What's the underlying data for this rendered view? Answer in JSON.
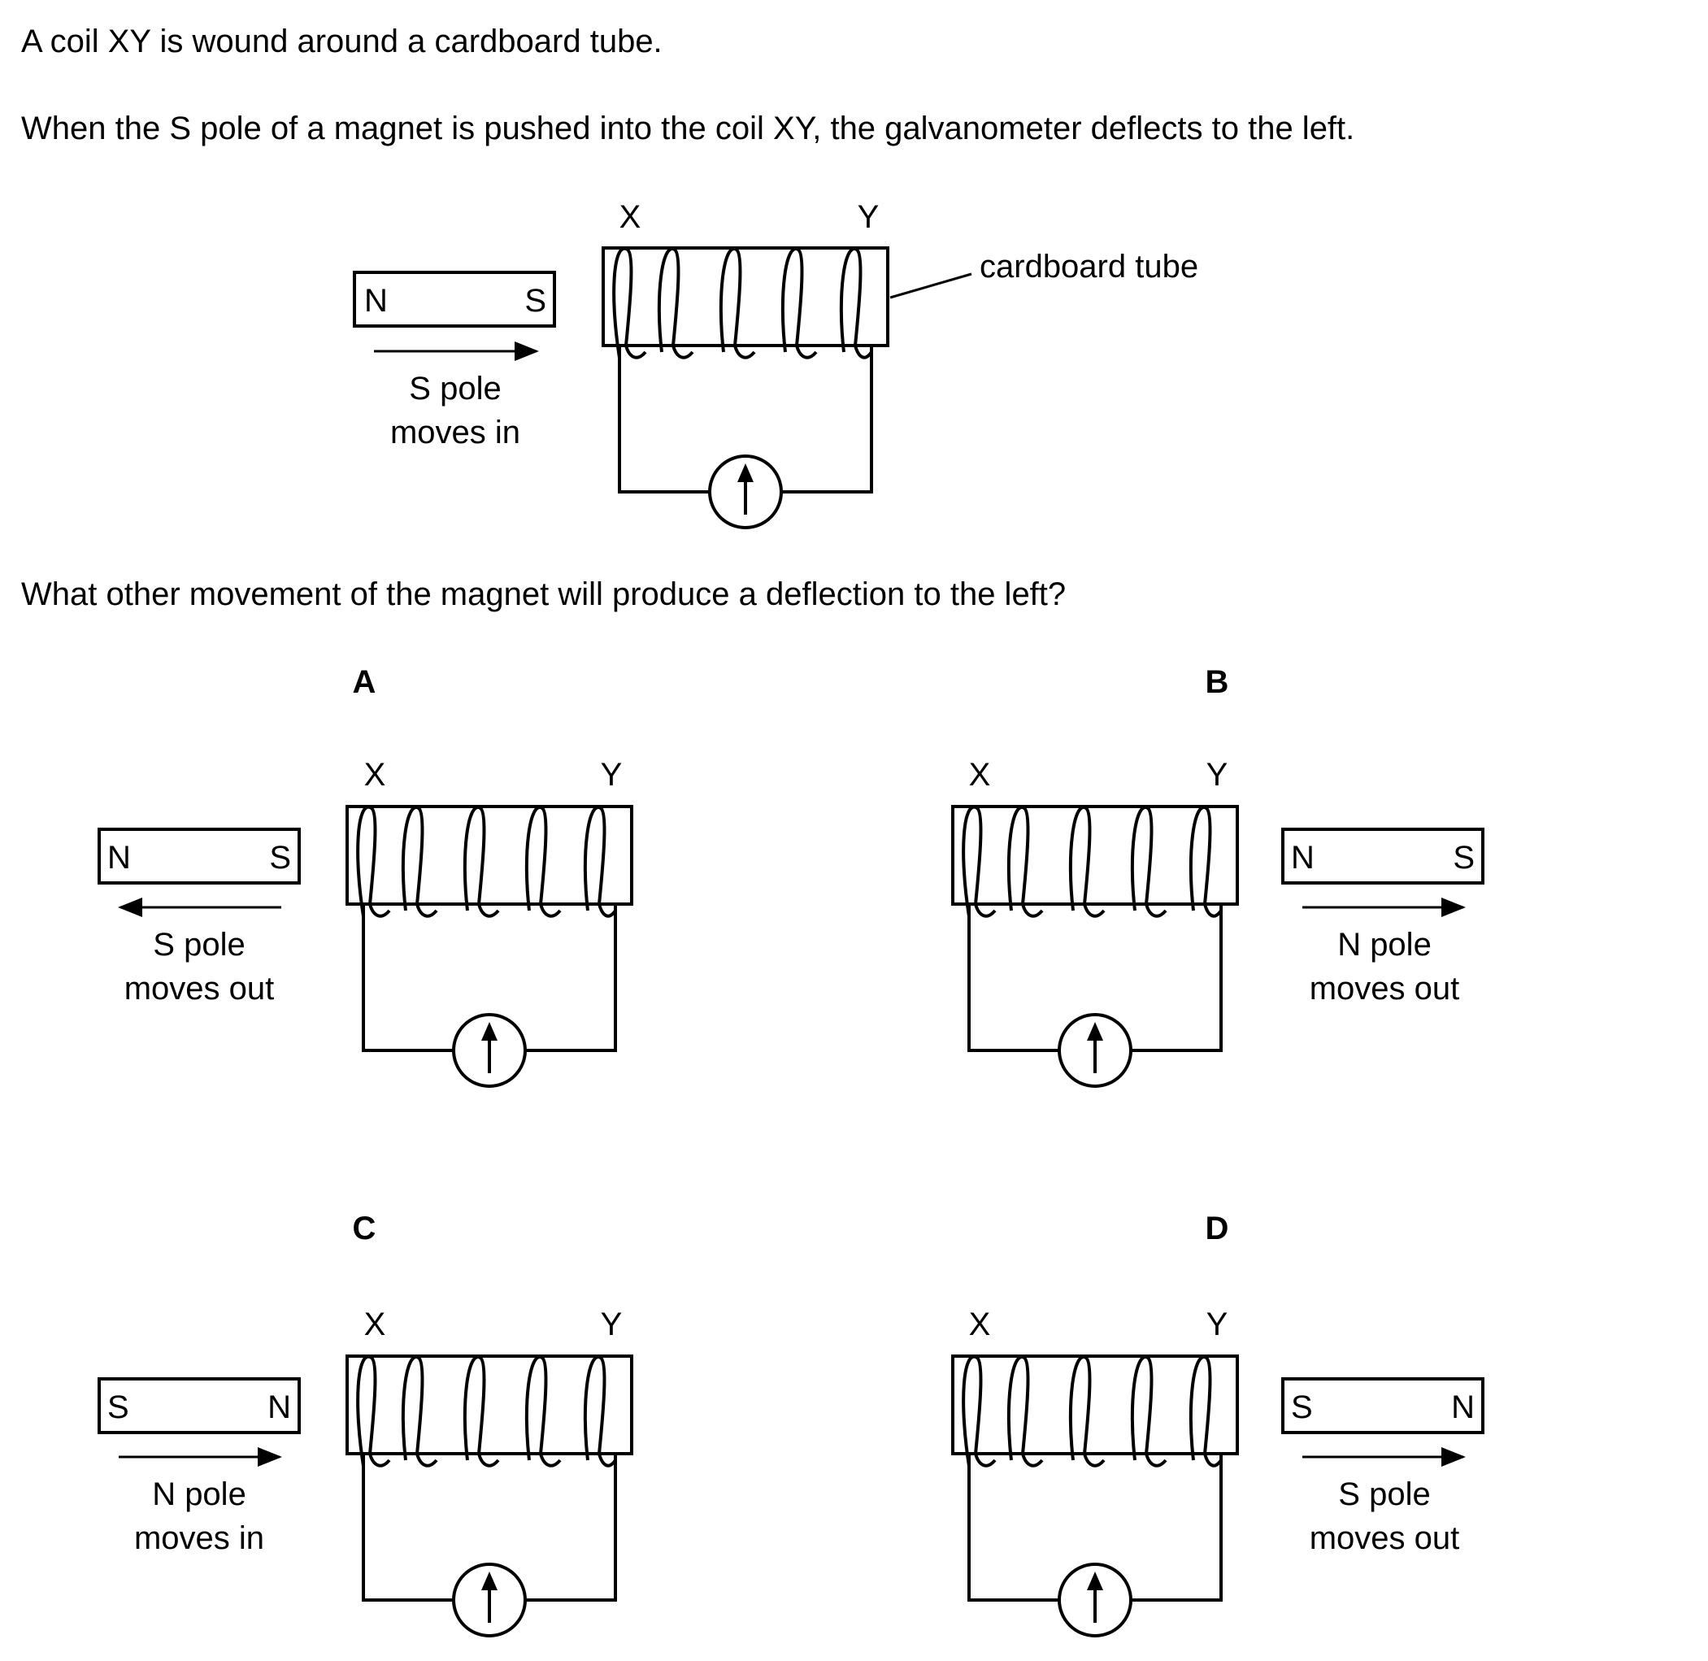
{
  "question": {
    "line1": "A coil XY is wound around a cardboard tube.",
    "line2": "When the S pole of a magnet is pushed into the coil XY, the galvanometer deflects to the left.",
    "prompt": "What other movement of the magnet will produce a deflection to the left?"
  },
  "main_diagram": {
    "coil_end_left": "X",
    "coil_end_right": "Y",
    "tube_label": "cardboard tube",
    "magnet_left_pole": "N",
    "magnet_right_pole": "S",
    "movement_line1": "S pole",
    "movement_line2": "moves in"
  },
  "options": [
    {
      "letter": "A",
      "coil_end_left": "X",
      "coil_end_right": "Y",
      "magnet_left_pole": "N",
      "magnet_right_pole": "S",
      "movement_line1": "S pole",
      "movement_line2": "moves out"
    },
    {
      "letter": "B",
      "coil_end_left": "X",
      "coil_end_right": "Y",
      "magnet_left_pole": "N",
      "magnet_right_pole": "S",
      "movement_line1": "N pole",
      "movement_line2": "moves out"
    },
    {
      "letter": "C",
      "coil_end_left": "X",
      "coil_end_right": "Y",
      "magnet_left_pole": "S",
      "magnet_right_pole": "N",
      "movement_line1": "N pole",
      "movement_line2": "moves in"
    },
    {
      "letter": "D",
      "coil_end_left": "X",
      "coil_end_right": "Y",
      "magnet_left_pole": "S",
      "magnet_right_pole": "N",
      "movement_line1": "S pole",
      "movement_line2": "moves out"
    }
  ]
}
